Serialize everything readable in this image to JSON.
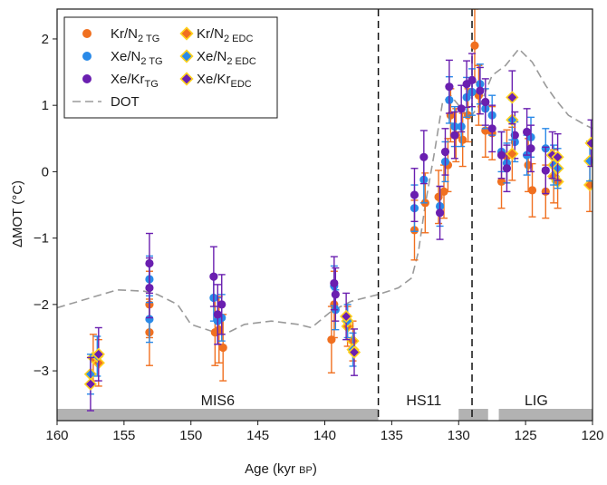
{
  "chart_data": {
    "type": "scatter",
    "xlabel": "Age (kyr BP)",
    "ylabel": "ΔMOT (°C)",
    "xlim": [
      160,
      120
    ],
    "ylim": [
      -3.75,
      2.45
    ],
    "x_ticks": [
      160,
      155,
      150,
      145,
      140,
      135,
      130,
      125,
      120
    ],
    "y_ticks": [
      -3,
      -2,
      -1,
      0,
      1,
      2
    ],
    "boundaries": [
      136,
      129
    ],
    "periods": [
      {
        "label": "MIS6",
        "x": 148
      },
      {
        "label": "HS11",
        "x": 132.6
      },
      {
        "label": "LIG",
        "x": 124.2
      }
    ],
    "gray_bar": [
      [
        160,
        136
      ],
      [
        130,
        127.8
      ],
      [
        127,
        120
      ]
    ],
    "legend": {
      "position": "top-left",
      "entries": [
        {
          "series": "kr_tg",
          "main": "Kr/N",
          "sub": "2 TG"
        },
        {
          "series": "kr_edc",
          "main": "Kr/N",
          "sub": "2 EDC"
        },
        {
          "series": "xe_tg",
          "main": "Xe/N",
          "sub": "2 TG"
        },
        {
          "series": "xe_edc",
          "main": "Xe/N",
          "sub": "2 EDC"
        },
        {
          "series": "xekr_tg",
          "main": "Xe/Kr",
          "sub": "TG"
        },
        {
          "series": "xekr_edc",
          "main": "Xe/Kr",
          "sub": "EDC"
        },
        {
          "series": "dot",
          "main": "DOT",
          "sub": ""
        }
      ]
    },
    "colors": {
      "kr": "#f07020",
      "xe": "#2a8ae8",
      "xekr": "#6a1fb0",
      "diamond_outline": "#ffd21f",
      "dot": "#9a9a9a",
      "gray_bar": "#b2b2b2"
    },
    "series": [
      {
        "id": "kr_tg",
        "marker": "circle",
        "color": "kr",
        "points": [
          [
            153.1,
            -2.42,
            0.5
          ],
          [
            153.1,
            -2.0,
            0.5
          ],
          [
            148.2,
            -2.42,
            0.5
          ],
          [
            147.9,
            -2.38,
            0.5
          ],
          [
            147.6,
            -2.65,
            0.5
          ],
          [
            139.5,
            -2.53,
            0.5
          ],
          [
            139.3,
            -2.0,
            0.5
          ],
          [
            133.3,
            -0.88,
            0.45
          ],
          [
            132.5,
            -0.47,
            0.45
          ],
          [
            131.5,
            -0.38,
            0.4
          ],
          [
            131.1,
            -0.3,
            0.4
          ],
          [
            130.8,
            0.1,
            0.4
          ],
          [
            130.6,
            0.85,
            0.4
          ],
          [
            130.2,
            0.55,
            0.4
          ],
          [
            129.7,
            0.48,
            0.4
          ],
          [
            129.3,
            0.85,
            0.4
          ],
          [
            128.8,
            1.9,
            0.55
          ],
          [
            128.5,
            1.15,
            0.45
          ],
          [
            128.0,
            0.62,
            0.4
          ],
          [
            127.5,
            0.58,
            0.4
          ],
          [
            126.8,
            -0.15,
            0.4
          ],
          [
            126.4,
            0.23,
            0.4
          ],
          [
            124.8,
            0.1,
            0.4
          ],
          [
            124.5,
            -0.28,
            0.4
          ],
          [
            123.5,
            -0.3,
            0.4
          ]
        ]
      },
      {
        "id": "xe_tg",
        "marker": "circle",
        "color": "xe",
        "points": [
          [
            153.1,
            -1.62,
            0.35
          ],
          [
            153.1,
            -2.22,
            0.35
          ],
          [
            148.3,
            -1.9,
            0.35
          ],
          [
            148.0,
            -2.25,
            0.35
          ],
          [
            147.7,
            -2.2,
            0.35
          ],
          [
            139.3,
            -1.72,
            0.3
          ],
          [
            139.2,
            -2.08,
            0.3
          ],
          [
            133.3,
            -0.55,
            0.35
          ],
          [
            132.6,
            -0.12,
            0.35
          ],
          [
            131.4,
            -0.52,
            0.3
          ],
          [
            131.0,
            0.15,
            0.3
          ],
          [
            130.7,
            1.08,
            0.35
          ],
          [
            130.3,
            0.68,
            0.3
          ],
          [
            129.8,
            0.68,
            0.3
          ],
          [
            129.4,
            1.12,
            0.3
          ],
          [
            129.0,
            1.2,
            0.35
          ],
          [
            128.4,
            1.32,
            0.3
          ],
          [
            128.0,
            0.95,
            0.3
          ],
          [
            127.5,
            0.85,
            0.3
          ],
          [
            126.8,
            0.3,
            0.3
          ],
          [
            126.4,
            0.13,
            0.3
          ],
          [
            125.8,
            0.45,
            0.3
          ],
          [
            124.9,
            0.25,
            0.3
          ],
          [
            124.6,
            0.52,
            0.3
          ],
          [
            123.5,
            0.35,
            0.3
          ]
        ]
      },
      {
        "id": "xekr_tg",
        "marker": "circle",
        "color": "xekr",
        "points": [
          [
            153.1,
            -1.38,
            0.45
          ],
          [
            153.1,
            -1.75,
            0.45
          ],
          [
            148.3,
            -1.58,
            0.45
          ],
          [
            148.0,
            -2.15,
            0.45
          ],
          [
            147.7,
            -2.0,
            0.45
          ],
          [
            139.3,
            -1.68,
            0.4
          ],
          [
            139.2,
            -1.85,
            0.4
          ],
          [
            133.3,
            -0.35,
            0.4
          ],
          [
            132.6,
            0.22,
            0.4
          ],
          [
            131.4,
            -0.62,
            0.4
          ],
          [
            131.0,
            0.3,
            0.35
          ],
          [
            130.7,
            1.28,
            0.4
          ],
          [
            130.3,
            0.55,
            0.35
          ],
          [
            129.8,
            0.95,
            0.35
          ],
          [
            129.4,
            1.32,
            0.35
          ],
          [
            129.0,
            1.38,
            0.4
          ],
          [
            128.4,
            1.22,
            0.35
          ],
          [
            128.0,
            1.05,
            0.35
          ],
          [
            127.5,
            0.65,
            0.35
          ],
          [
            126.8,
            0.25,
            0.35
          ],
          [
            126.4,
            0.05,
            0.35
          ],
          [
            125.8,
            0.55,
            0.35
          ],
          [
            124.9,
            0.6,
            0.35
          ],
          [
            124.6,
            0.35,
            0.35
          ],
          [
            123.5,
            0.02,
            0.35
          ]
        ]
      },
      {
        "id": "kr_edc",
        "marker": "diamond",
        "color": "kr",
        "points": [
          [
            157.3,
            -2.8,
            0.35
          ],
          [
            156.9,
            -2.88,
            0.35
          ],
          [
            138.3,
            -2.33,
            0.3
          ],
          [
            137.9,
            -2.55,
            0.3
          ],
          [
            126.0,
            0.27,
            0.4
          ],
          [
            122.9,
            -0.07,
            0.4
          ],
          [
            122.6,
            -0.15,
            0.4
          ],
          [
            120.2,
            -0.2,
            0.4
          ]
        ]
      },
      {
        "id": "xe_edc",
        "marker": "diamond",
        "color": "xe",
        "points": [
          [
            157.5,
            -3.05,
            0.3
          ],
          [
            157.0,
            -2.78,
            0.3
          ],
          [
            138.3,
            -2.25,
            0.25
          ],
          [
            137.9,
            -2.68,
            0.25
          ],
          [
            126.0,
            0.78,
            0.3
          ],
          [
            122.9,
            0.1,
            0.3
          ],
          [
            122.6,
            0.05,
            0.3
          ],
          [
            120.2,
            0.16,
            0.3
          ]
        ]
      },
      {
        "id": "xekr_edc",
        "marker": "diamond",
        "color": "xekr",
        "points": [
          [
            157.5,
            -3.2,
            0.4
          ],
          [
            156.9,
            -2.75,
            0.4
          ],
          [
            138.4,
            -2.18,
            0.35
          ],
          [
            137.8,
            -2.72,
            0.35
          ],
          [
            126.0,
            1.12,
            0.4
          ],
          [
            123.0,
            0.25,
            0.35
          ],
          [
            122.6,
            0.22,
            0.35
          ],
          [
            120.1,
            0.43,
            0.35
          ]
        ]
      },
      {
        "id": "dot",
        "marker": "line",
        "color": "dot",
        "points": [
          [
            160,
            -2.05
          ],
          [
            155.5,
            -1.78
          ],
          [
            153.5,
            -1.8
          ],
          [
            152.5,
            -1.85
          ],
          [
            151,
            -2.0
          ],
          [
            150,
            -2.3
          ],
          [
            148.5,
            -2.4
          ],
          [
            147.5,
            -2.45
          ],
          [
            146,
            -2.3
          ],
          [
            144,
            -2.25
          ],
          [
            142,
            -2.3
          ],
          [
            141,
            -2.35
          ],
          [
            139.5,
            -2.1
          ],
          [
            138,
            -1.95
          ],
          [
            136,
            -1.85
          ],
          [
            134.5,
            -1.75
          ],
          [
            133.5,
            -1.6
          ],
          [
            133,
            -1.2
          ],
          [
            132.5,
            -0.5
          ],
          [
            131.8,
            0.3
          ],
          [
            131.2,
            1.05
          ],
          [
            130.6,
            1.15
          ],
          [
            130,
            1.0
          ],
          [
            129.2,
            0.8
          ],
          [
            128.3,
            1.05
          ],
          [
            127.5,
            1.45
          ],
          [
            126.5,
            1.6
          ],
          [
            125.5,
            1.85
          ],
          [
            124.5,
            1.65
          ],
          [
            123.5,
            1.3
          ],
          [
            122.8,
            1.1
          ],
          [
            121.8,
            0.85
          ],
          [
            120.5,
            0.7
          ],
          [
            120,
            0.65
          ]
        ]
      }
    ]
  }
}
